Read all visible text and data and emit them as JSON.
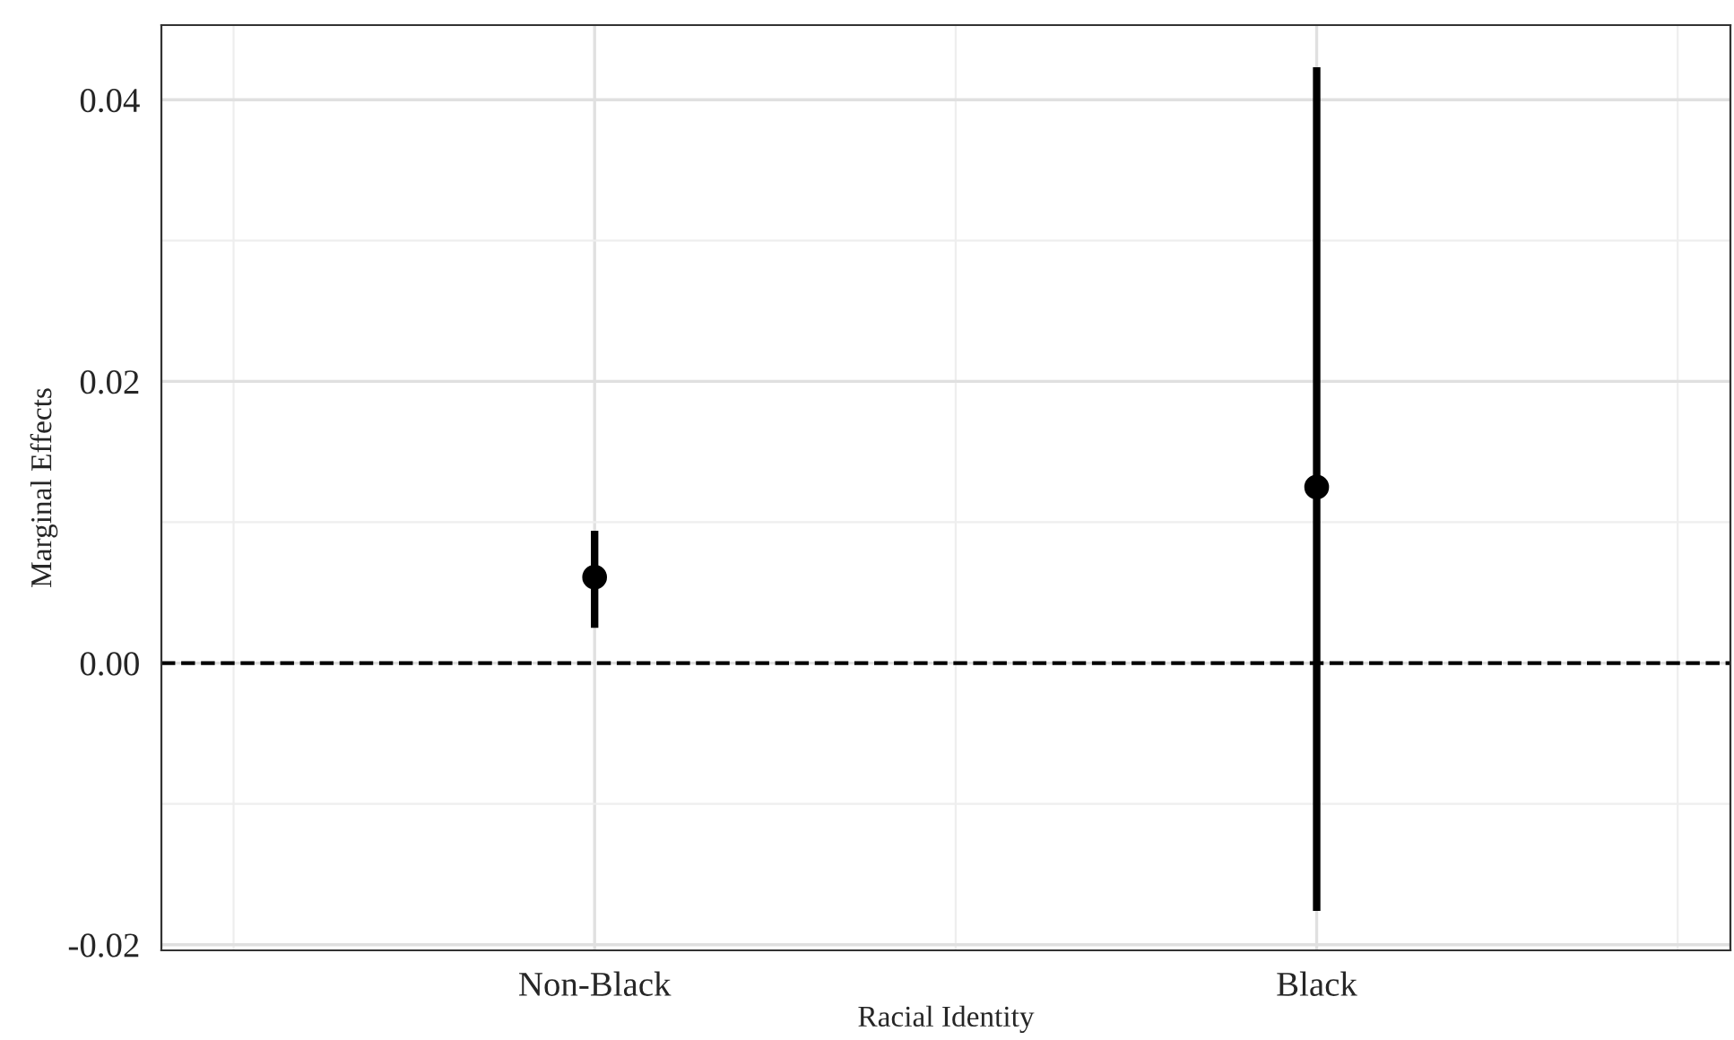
{
  "chart_data": {
    "type": "scatter",
    "xlabel": "Racial Identity",
    "ylabel": "Marginal Effects",
    "categories": [
      "Non-Black",
      "Black"
    ],
    "series": [
      {
        "color": "#000000",
        "values": [
          0.0061,
          0.0125
        ],
        "errors": [
          [
            0.0025,
            0.0094
          ],
          [
            -0.0176,
            0.0423
          ]
        ]
      }
    ],
    "ylim": [
      -0.0204,
      0.0453
    ],
    "yticks": [
      {
        "value": -0.02,
        "label": "-0.02"
      },
      {
        "value": 0,
        "label": "0.00"
      },
      {
        "value": 0.02,
        "label": "0.02"
      },
      {
        "value": 0.04,
        "label": "0.04"
      }
    ],
    "ref_lines": [
      {
        "axis": "y",
        "value": 0,
        "color": "#000000",
        "line_style": "dashed"
      }
    ],
    "grid": true,
    "marker": "circle",
    "legend": false
  }
}
